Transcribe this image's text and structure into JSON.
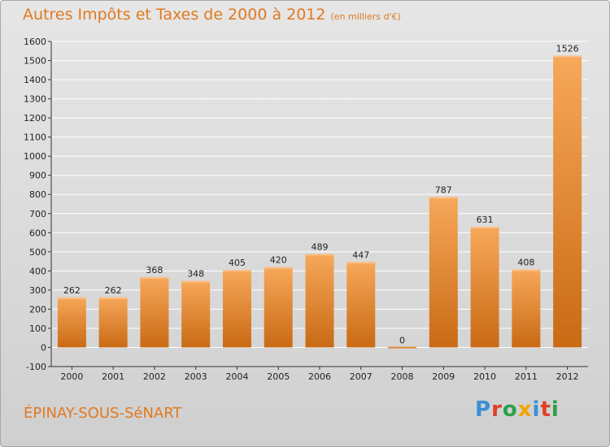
{
  "title": "Autres Impôts et Taxes de 2000 à 2012",
  "subtitle": "(en milliers d'€)",
  "city": "ÉPINAY-SOUS-SéNART",
  "logo": {
    "text": "Proxiti",
    "letter_colors": [
      "#3a8fd6",
      "#e0402b",
      "#2aa146",
      "#f0a400",
      "#3a8fd6",
      "#e0402b",
      "#2aa146"
    ]
  },
  "colors": {
    "title": "#e07a20",
    "bar_top": "#f7a85a",
    "bar_bottom": "#c96a14",
    "grid": "#ffffff"
  },
  "chart_data": {
    "type": "bar",
    "title": "Autres Impôts et Taxes de 2000 à 2012",
    "subtitle": "(en milliers d'€)",
    "xlabel": "",
    "ylabel": "",
    "categories": [
      "2000",
      "2001",
      "2002",
      "2003",
      "2004",
      "2005",
      "2006",
      "2007",
      "2008",
      "2009",
      "2010",
      "2011",
      "2012"
    ],
    "values": [
      262,
      262,
      368,
      348,
      405,
      420,
      489,
      447,
      0,
      787,
      631,
      408,
      1526
    ],
    "ylim": [
      -100,
      1600
    ],
    "yticks": [
      -100,
      0,
      100,
      200,
      300,
      400,
      500,
      600,
      700,
      800,
      900,
      1000,
      1100,
      1200,
      1300,
      1400,
      1500,
      1600
    ],
    "grid": true,
    "legend": "none"
  }
}
